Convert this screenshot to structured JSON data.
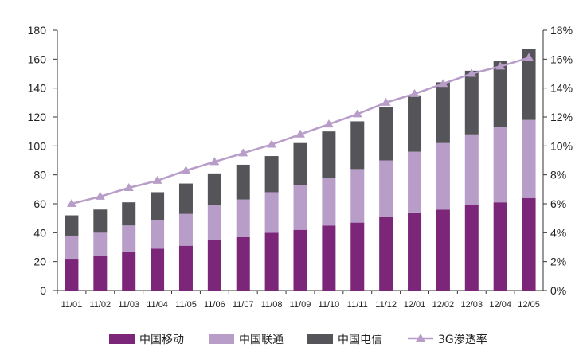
{
  "chart_data": {
    "type": "bar",
    "stacked": true,
    "categories": [
      "11/01",
      "11/02",
      "11/03",
      "11/04",
      "11/05",
      "11/06",
      "11/07",
      "11/08",
      "11/09",
      "11/10",
      "11/11",
      "11/12",
      "12/01",
      "12/02",
      "12/03",
      "12/04",
      "12/05"
    ],
    "series": [
      {
        "name": "中国移动",
        "color": "#7b2679",
        "values": [
          22,
          24,
          27,
          29,
          31,
          35,
          37,
          40,
          42,
          45,
          47,
          51,
          54,
          56,
          59,
          61,
          64
        ]
      },
      {
        "name": "中国联通",
        "color": "#b89dc9",
        "values": [
          16,
          16,
          18,
          20,
          22,
          24,
          26,
          28,
          31,
          33,
          37,
          39,
          42,
          46,
          49,
          52,
          54
        ]
      },
      {
        "name": "中国电信",
        "color": "#555459",
        "values": [
          14,
          16,
          16,
          19,
          21,
          22,
          24,
          25,
          29,
          32,
          33,
          37,
          39,
          42,
          44,
          46,
          49
        ]
      }
    ],
    "line_series": {
      "name": "3G渗透率",
      "color": "#b89dc9",
      "axis": "right",
      "values": [
        6.0,
        6.5,
        7.1,
        7.6,
        8.3,
        8.9,
        9.5,
        10.1,
        10.8,
        11.5,
        12.2,
        13.0,
        13.6,
        14.3,
        15.0,
        15.5,
        16.1
      ]
    },
    "ylim": [
      0,
      180
    ],
    "yticks": [
      0,
      20,
      40,
      60,
      80,
      100,
      120,
      140,
      160,
      180
    ],
    "y2lim": [
      0,
      18
    ],
    "y2ticks": [
      "0%",
      "2%",
      "4%",
      "6%",
      "8%",
      "10%",
      "12%",
      "14%",
      "16%",
      "18%"
    ],
    "legend_position": "bottom",
    "grid": false
  }
}
